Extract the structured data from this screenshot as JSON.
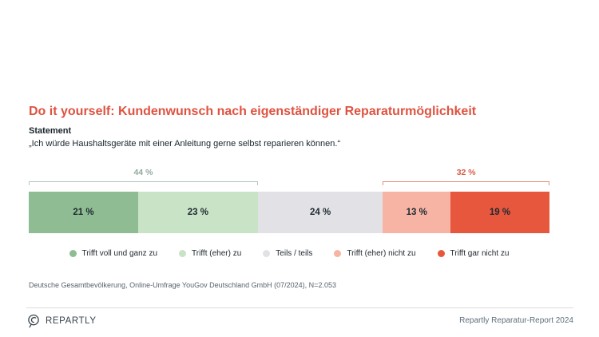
{
  "page": {
    "title": "Do it yourself: Kundenwunsch nach eigenständiger Reparaturmöglichkeit",
    "statement_label": "Statement",
    "statement_quote": "„Ich würde Haushaltsgeräte mit einer Anleitung gerne selbst reparieren können.“",
    "footnote": "Deutsche Gesamtbevölkerung, Online-Umfrage YouGov Deutschland GmbH (07/2024), N=2.053"
  },
  "footer": {
    "brand": "REPARTLY",
    "logo_icon": "repartly-logo-icon",
    "right_text": "Repartly Reparatur-Report 2024"
  },
  "colors": {
    "title": "#de5340",
    "footnote": "#59636d",
    "brand_text": "#39434d",
    "footer_right_text": "#5e6d7c",
    "divider": "#dcdcdc"
  },
  "chart_data": {
    "type": "bar",
    "variant": "horizontal-stacked-single-bar",
    "title": "Do it yourself: Kundenwunsch nach eigenständiger Reparaturmöglichkeit",
    "statement": "„Ich würde Haushaltsgeräte mit einer Anleitung gerne selbst reparieren können.“",
    "categories": [
      "Trifft voll und ganz zu",
      "Trifft (eher) zu",
      "Teils / teils",
      "Trifft (eher) nicht zu",
      "Trifft gar nicht zu"
    ],
    "values": [
      21,
      23,
      24,
      13,
      19
    ],
    "value_labels": [
      "21 %",
      "23 %",
      "24 %",
      "13 %",
      "19 %"
    ],
    "colors": [
      "#8fbc92",
      "#c9e3c6",
      "#e2e2e6",
      "#f7b4a5",
      "#e6573e"
    ],
    "unit": "%",
    "total": 100,
    "legend_position": "bottom",
    "brackets": [
      {
        "label": "44 %",
        "from_pct": 0,
        "to_pct": 44,
        "line_color": "#b6c6bb",
        "label_color": "#90ac9e"
      },
      {
        "label": "32 %",
        "from_pct": 68,
        "to_pct": 100,
        "line_color": "#e59179",
        "label_color": "#d6604b"
      }
    ]
  }
}
